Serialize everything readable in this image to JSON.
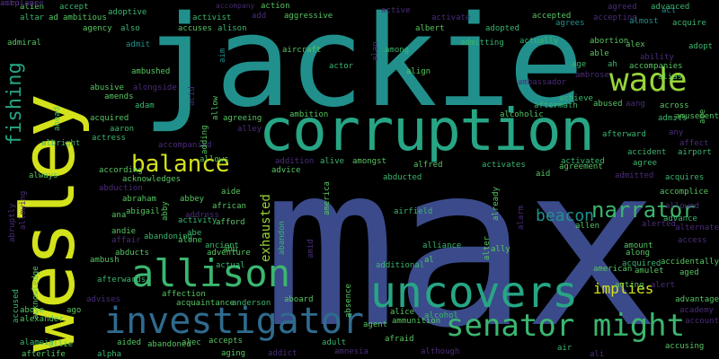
{
  "palette": {
    "navy": "#3a4a8a",
    "indigo": "#3b3f82",
    "blue": "#2f6b8e",
    "teal": "#21908c",
    "teal_light": "#27a584",
    "green": "#3bb66f",
    "green_light": "#57c661",
    "lime": "#98d43a",
    "yellow": "#d3e21b",
    "purple": "#45296f",
    "violet": "#4b2c7a"
  },
  "words": [
    {
      "text": "max",
      "color": "navy"
    },
    {
      "text": "jackie",
      "color": "teal"
    },
    {
      "text": "wesley",
      "color": "yellow"
    },
    {
      "text": "corruption",
      "color": "teal_light"
    },
    {
      "text": "uncovers",
      "color": "teal_light"
    },
    {
      "text": "investigator",
      "color": "blue"
    },
    {
      "text": "allison",
      "color": "green"
    },
    {
      "text": "senator might",
      "color": "green"
    },
    {
      "text": "wade",
      "color": "lime"
    },
    {
      "text": "balance",
      "color": "yellow"
    },
    {
      "text": "narrator",
      "color": "green"
    },
    {
      "text": "fishing",
      "color": "teal_light"
    },
    {
      "text": "beacon",
      "color": "teal"
    },
    {
      "text": "implies",
      "color": "yellow"
    },
    {
      "text": "exhausted",
      "color": "lime"
    },
    {
      "text": "alien",
      "color": "green_light"
    },
    {
      "text": "accept",
      "color": "green"
    },
    {
      "text": "adoptive",
      "color": "green"
    },
    {
      "text": "accompany",
      "color": "purple"
    },
    {
      "text": "action",
      "color": "green_light"
    },
    {
      "text": "active",
      "color": "violet"
    },
    {
      "text": "act",
      "color": "teal"
    },
    {
      "text": "agreed",
      "color": "violet"
    },
    {
      "text": "advanced",
      "color": "green"
    },
    {
      "text": "altar",
      "color": "green"
    },
    {
      "text": "ad",
      "color": "green_light"
    },
    {
      "text": "ambitious",
      "color": "green_light"
    },
    {
      "text": "activist",
      "color": "green"
    },
    {
      "text": "add",
      "color": "violet"
    },
    {
      "text": "aggressive",
      "color": "green_light"
    },
    {
      "text": "activate",
      "color": "violet"
    },
    {
      "text": "accepted",
      "color": "green_light"
    },
    {
      "text": "accepting",
      "color": "violet"
    },
    {
      "text": "almost",
      "color": "teal"
    },
    {
      "text": "acquire",
      "color": "green"
    },
    {
      "text": "agency",
      "color": "green_light"
    },
    {
      "text": "also",
      "color": "green"
    },
    {
      "text": "accuses",
      "color": "green_light"
    },
    {
      "text": "alison",
      "color": "green"
    },
    {
      "text": "able",
      "color": "green_light"
    },
    {
      "text": "actually",
      "color": "green"
    },
    {
      "text": "agrees",
      "color": "teal"
    },
    {
      "text": "admiral",
      "color": "green_light"
    },
    {
      "text": "admit",
      "color": "teal"
    },
    {
      "text": "aircraft",
      "color": "green_light"
    },
    {
      "text": "among",
      "color": "green"
    },
    {
      "text": "albert",
      "color": "green_light"
    },
    {
      "text": "adopted",
      "color": "green"
    },
    {
      "text": "abortion",
      "color": "green_light"
    },
    {
      "text": "alex",
      "color": "green_light"
    },
    {
      "text": "accompanies",
      "color": "green_light"
    },
    {
      "text": "adopt",
      "color": "green"
    },
    {
      "text": "ability",
      "color": "violet"
    },
    {
      "text": "admitting",
      "color": "green"
    },
    {
      "text": "alan",
      "color": "violet"
    },
    {
      "text": "ambushed",
      "color": "green_light"
    },
    {
      "text": "age",
      "color": "green"
    },
    {
      "text": "ah",
      "color": "green"
    },
    {
      "text": "alias",
      "color": "green_light"
    },
    {
      "text": "across",
      "color": "green_light"
    },
    {
      "text": "ambassador",
      "color": "violet"
    },
    {
      "text": "ambrose",
      "color": "violet"
    },
    {
      "text": "abusive",
      "color": "green_light"
    },
    {
      "text": "alongside",
      "color": "violet"
    },
    {
      "text": "amends",
      "color": "green_light"
    },
    {
      "text": "adam",
      "color": "green"
    },
    {
      "text": "acid",
      "color": "violet"
    },
    {
      "text": "aim",
      "color": "teal"
    },
    {
      "text": "actor",
      "color": "green"
    },
    {
      "text": "align",
      "color": "green_light"
    },
    {
      "text": "achieve",
      "color": "green"
    },
    {
      "text": "aftermath",
      "color": "green"
    },
    {
      "text": "abused",
      "color": "green_light"
    },
    {
      "text": "aang",
      "color": "violet"
    },
    {
      "text": "admits",
      "color": "green"
    },
    {
      "text": "amusement",
      "color": "green_light"
    },
    {
      "text": "ace",
      "color": "green_light"
    },
    {
      "text": "any",
      "color": "violet"
    },
    {
      "text": "acquired",
      "color": "green_light"
    },
    {
      "text": "agreeing",
      "color": "green_light"
    },
    {
      "text": "ambition",
      "color": "green_light"
    },
    {
      "text": "alcoholic",
      "color": "green_light"
    },
    {
      "text": "afterward",
      "color": "green"
    },
    {
      "text": "affect",
      "color": "violet"
    },
    {
      "text": "aaron",
      "color": "green"
    },
    {
      "text": "actress",
      "color": "green"
    },
    {
      "text": "ahead",
      "color": "green_light"
    },
    {
      "text": "albright",
      "color": "green"
    },
    {
      "text": "accompanied",
      "color": "violet"
    },
    {
      "text": "adding",
      "color": "green_light"
    },
    {
      "text": "allow",
      "color": "green_light"
    },
    {
      "text": "alley",
      "color": "violet"
    },
    {
      "text": "accident",
      "color": "green"
    },
    {
      "text": "airport",
      "color": "green"
    },
    {
      "text": "addition",
      "color": "violet"
    },
    {
      "text": "advice",
      "color": "green_light"
    },
    {
      "text": "alive",
      "color": "green"
    },
    {
      "text": "amongst",
      "color": "green_light"
    },
    {
      "text": "alfred",
      "color": "green_light"
    },
    {
      "text": "activates",
      "color": "green"
    },
    {
      "text": "aid",
      "color": "green_light"
    },
    {
      "text": "activated",
      "color": "green"
    },
    {
      "text": "agreement",
      "color": "green_light"
    },
    {
      "text": "agree",
      "color": "green"
    },
    {
      "text": "always",
      "color": "green_light"
    },
    {
      "text": "according",
      "color": "green_light"
    },
    {
      "text": "acknowledges",
      "color": "green_light"
    },
    {
      "text": "allows",
      "color": "green_light"
    },
    {
      "text": "abducted",
      "color": "green"
    },
    {
      "text": "admitted",
      "color": "violet"
    },
    {
      "text": "acquires",
      "color": "green"
    },
    {
      "text": "abduction",
      "color": "violet"
    },
    {
      "text": "aide",
      "color": "green_light"
    },
    {
      "text": "accomplice",
      "color": "green_light"
    },
    {
      "text": "allowed",
      "color": "violet"
    },
    {
      "text": "abraham",
      "color": "green_light"
    },
    {
      "text": "abigail",
      "color": "green_light"
    },
    {
      "text": "abbey",
      "color": "green_light"
    },
    {
      "text": "african",
      "color": "green_light"
    },
    {
      "text": "address",
      "color": "violet"
    },
    {
      "text": "already",
      "color": "green_light"
    },
    {
      "text": "america",
      "color": "green_light"
    },
    {
      "text": "airfield",
      "color": "green"
    },
    {
      "text": "alarm",
      "color": "violet"
    },
    {
      "text": "advance",
      "color": "green"
    },
    {
      "text": "alerted",
      "color": "violet"
    },
    {
      "text": "alternate",
      "color": "violet"
    },
    {
      "text": "access",
      "color": "violet"
    },
    {
      "text": "andie",
      "color": "green_light"
    },
    {
      "text": "abby",
      "color": "green_light"
    },
    {
      "text": "ana",
      "color": "green_light"
    },
    {
      "text": "activity",
      "color": "green"
    },
    {
      "text": "afford",
      "color": "green_light"
    },
    {
      "text": "abe",
      "color": "green"
    },
    {
      "text": "affair",
      "color": "violet"
    },
    {
      "text": "alone",
      "color": "green_light"
    },
    {
      "text": "abandoning",
      "color": "green"
    },
    {
      "text": "abducts",
      "color": "green_light"
    },
    {
      "text": "adventure",
      "color": "green_light"
    },
    {
      "text": "abu",
      "color": "green_light"
    },
    {
      "text": "ancient",
      "color": "green"
    },
    {
      "text": "abandon",
      "color": "green"
    },
    {
      "text": "amid",
      "color": "violet"
    },
    {
      "text": "alter",
      "color": "green_light"
    },
    {
      "text": "additional",
      "color": "green"
    },
    {
      "text": "alliance",
      "color": "green"
    },
    {
      "text": "al",
      "color": "green_light"
    },
    {
      "text": "ally",
      "color": "green_light"
    },
    {
      "text": "allen",
      "color": "green_light"
    },
    {
      "text": "along",
      "color": "green_light"
    },
    {
      "text": "american",
      "color": "green_light"
    },
    {
      "text": "amount",
      "color": "green_light"
    },
    {
      "text": "accidentally",
      "color": "green_light"
    },
    {
      "text": "acquired",
      "color": "green"
    },
    {
      "text": "amulet",
      "color": "green_light"
    },
    {
      "text": "aged",
      "color": "green_light"
    },
    {
      "text": "acting",
      "color": "green_light"
    },
    {
      "text": "alert",
      "color": "violet"
    },
    {
      "text": "ambush",
      "color": "green_light"
    },
    {
      "text": "actual",
      "color": "green"
    },
    {
      "text": "afterwards",
      "color": "green"
    },
    {
      "text": "advises",
      "color": "violet"
    },
    {
      "text": "affection",
      "color": "green_light"
    },
    {
      "text": "acquaintance",
      "color": "green_light"
    },
    {
      "text": "anderson",
      "color": "green"
    },
    {
      "text": "aboard",
      "color": "green_light"
    },
    {
      "text": "absence",
      "color": "green_light"
    },
    {
      "text": "advantage",
      "color": "green_light"
    },
    {
      "text": "academy",
      "color": "violet"
    },
    {
      "text": "account",
      "color": "violet"
    },
    {
      "text": "abuse",
      "color": "green_light"
    },
    {
      "text": "ago",
      "color": "green_light"
    },
    {
      "text": "alice",
      "color": "green_light"
    },
    {
      "text": "ammunition",
      "color": "green_light"
    },
    {
      "text": "alcohol",
      "color": "green"
    },
    {
      "text": "alexander",
      "color": "green_light"
    },
    {
      "text": "alamein",
      "color": "green"
    },
    {
      "text": "allie",
      "color": "green_light"
    },
    {
      "text": "aided",
      "color": "green_light"
    },
    {
      "text": "abandoned",
      "color": "green_light"
    },
    {
      "text": "alec",
      "color": "green_light"
    },
    {
      "text": "accepts",
      "color": "green_light"
    },
    {
      "text": "adult",
      "color": "green"
    },
    {
      "text": "agent",
      "color": "green_light"
    },
    {
      "text": "afraid",
      "color": "green_light"
    },
    {
      "text": "air",
      "color": "green"
    },
    {
      "text": "afterlife",
      "color": "green_light"
    },
    {
      "text": "alpha",
      "color": "green"
    },
    {
      "text": "aging",
      "color": "green_light"
    },
    {
      "text": "addict",
      "color": "violet"
    },
    {
      "text": "amnesia",
      "color": "violet"
    },
    {
      "text": "although",
      "color": "violet"
    },
    {
      "text": "ali",
      "color": "violet"
    },
    {
      "text": "accusing",
      "color": "green_light"
    },
    {
      "text": "abruptly",
      "color": "violet"
    },
    {
      "text": "allowing",
      "color": "violet"
    },
    {
      "text": "accused",
      "color": "green"
    },
    {
      "text": "acknowledge",
      "color": "green_light"
    },
    {
      "text": "ambulance",
      "color": "violet"
    },
    {
      "text": "airplane",
      "color": "violet"
    }
  ]
}
